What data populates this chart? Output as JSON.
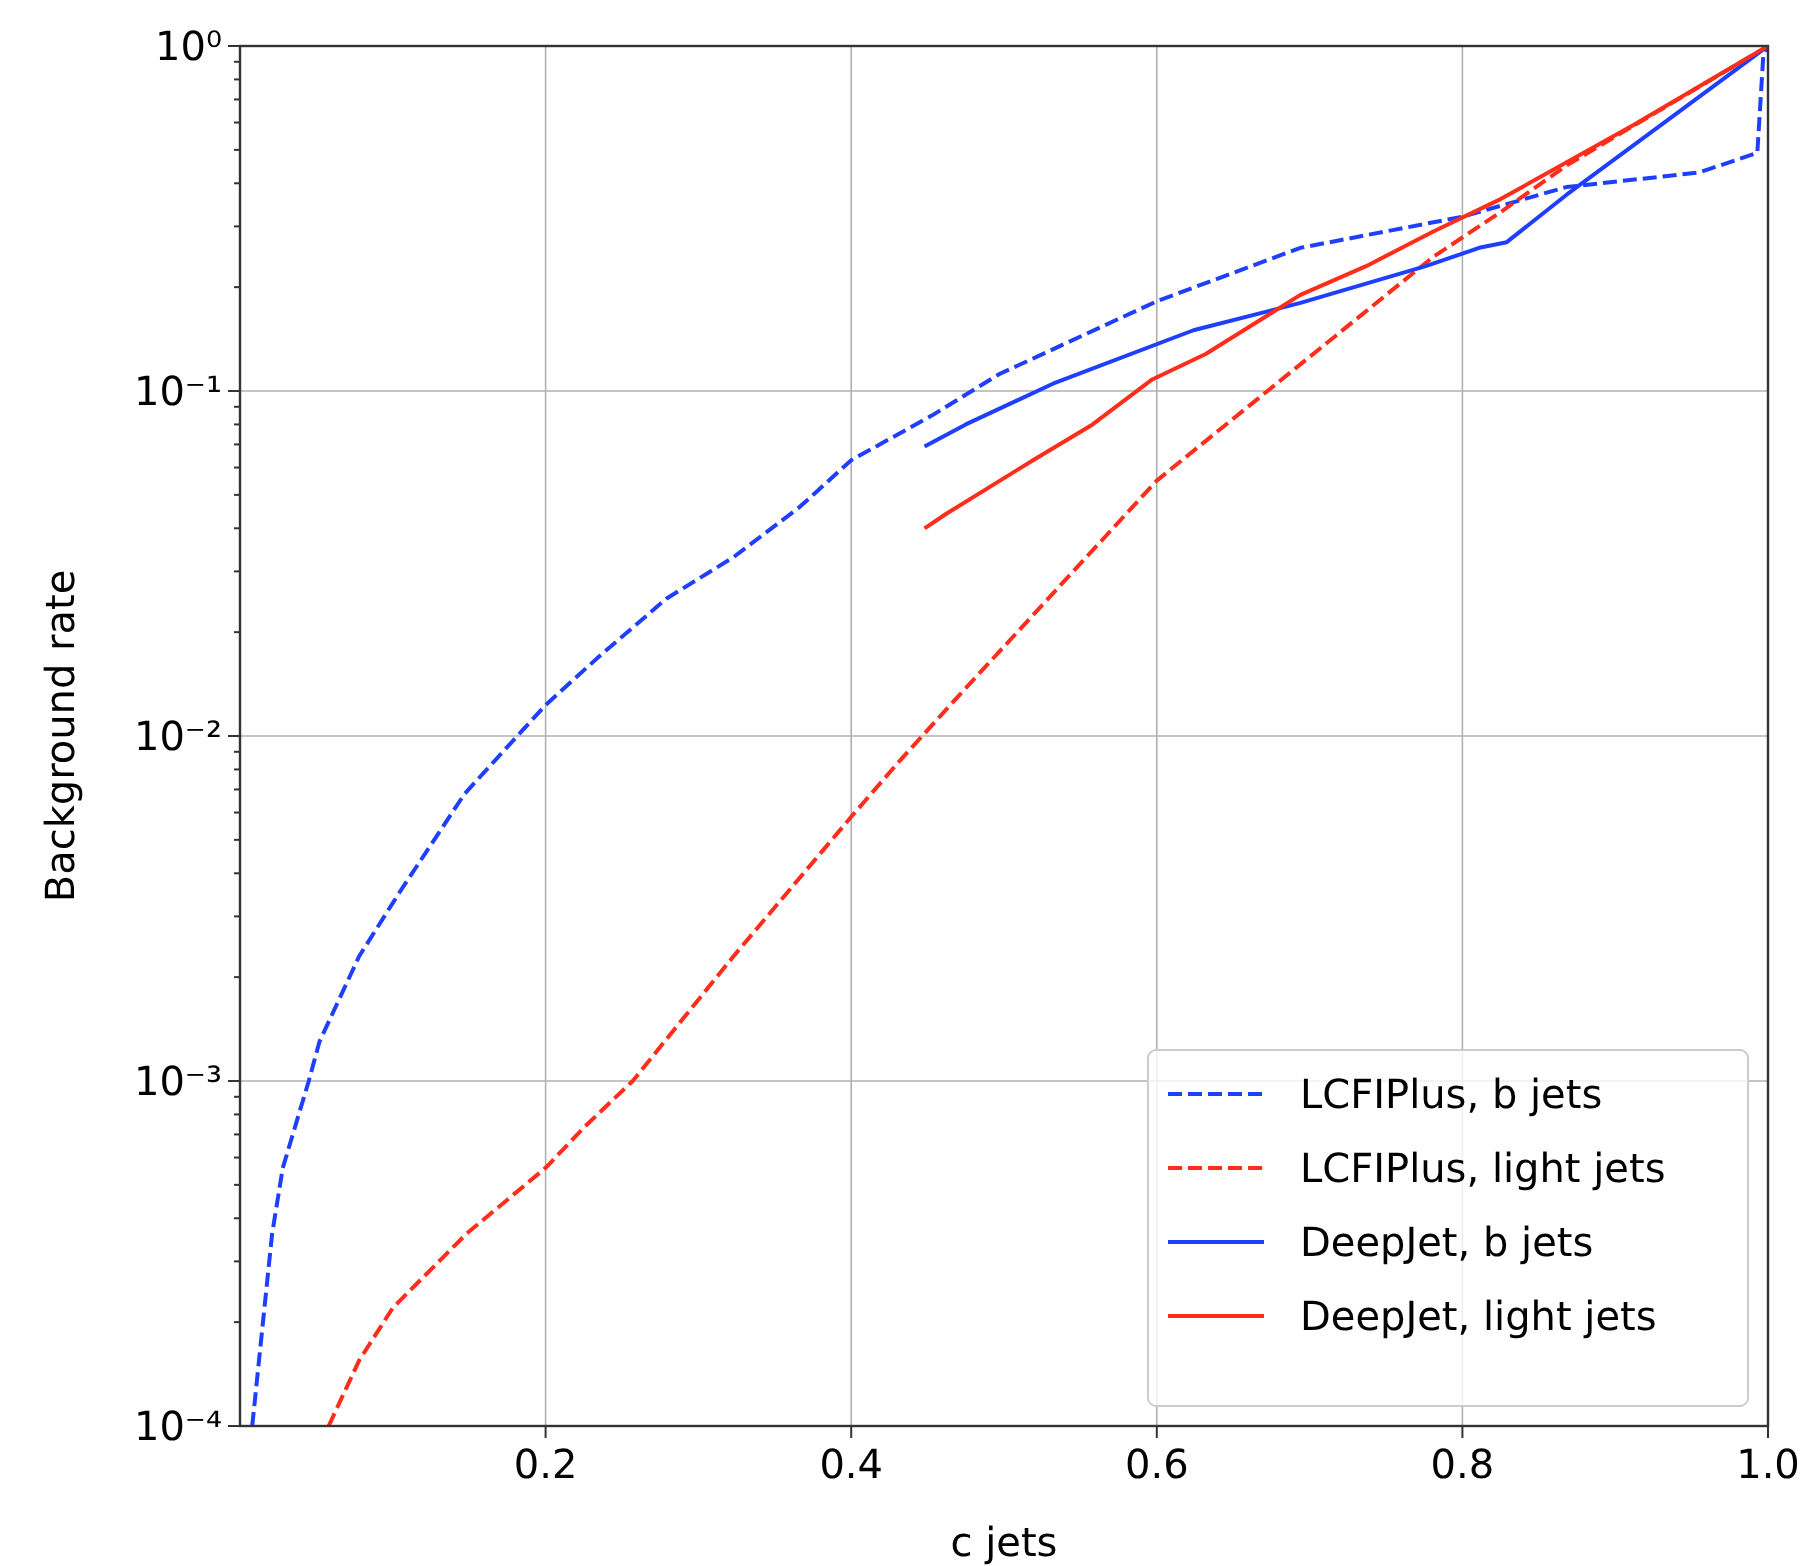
{
  "chart_data": {
    "type": "line",
    "xlabel": "c jets",
    "ylabel": "Background rate",
    "log": "y",
    "grid": true,
    "legend": "bottom right",
    "marker": "none",
    "xlim": [
      0,
      1
    ],
    "xticks": [
      0.2,
      0.4,
      0.6,
      0.8,
      {
        "value": 1.0,
        "label": "1.0"
      }
    ],
    "ylim": [
      0.0001,
      1
    ],
    "yticks": [
      {
        "value": 1,
        "label": "10⁰"
      },
      {
        "value": 0.1,
        "label": "10⁻¹"
      },
      {
        "value": 0.01,
        "label": "10⁻²"
      },
      {
        "value": 0.001,
        "label": "10⁻³"
      },
      {
        "value": 0.0001,
        "label": "10⁻⁴"
      },
      {
        "value": 0.0002,
        "label": null
      },
      {
        "value": 0.0003,
        "label": null
      },
      {
        "value": 0.0004,
        "label": null
      },
      {
        "value": 0.0005,
        "label": null
      },
      {
        "value": 0.0006,
        "label": null
      },
      {
        "value": 0.0007,
        "label": null
      },
      {
        "value": 0.0008,
        "label": null
      },
      {
        "value": 0.0009,
        "label": null
      },
      {
        "value": 0.002,
        "label": null
      },
      {
        "value": 0.003,
        "label": null
      },
      {
        "value": 0.004,
        "label": null
      },
      {
        "value": 0.005,
        "label": null
      },
      {
        "value": 0.006,
        "label": null
      },
      {
        "value": 0.007,
        "label": null
      },
      {
        "value": 0.008,
        "label": null
      },
      {
        "value": 0.009,
        "label": null
      },
      {
        "value": 0.02,
        "label": null
      },
      {
        "value": 0.03,
        "label": null
      },
      {
        "value": 0.04,
        "label": null
      },
      {
        "value": 0.05,
        "label": null
      },
      {
        "value": 0.06,
        "label": null
      },
      {
        "value": 0.07,
        "label": null
      },
      {
        "value": 0.08,
        "label": null
      },
      {
        "value": 0.09,
        "label": null
      },
      {
        "value": 0.2,
        "label": null
      },
      {
        "value": 0.3,
        "label": null
      },
      {
        "value": 0.4,
        "label": null
      },
      {
        "value": 0.5,
        "label": null
      },
      {
        "value": 0.6,
        "label": null
      },
      {
        "value": 0.7,
        "label": null
      },
      {
        "value": 0.8,
        "label": null
      },
      {
        "value": 0.9,
        "label": null
      }
    ],
    "series": [
      {
        "name": "LCFIPlus, b jets",
        "color": "#1f3fff",
        "line_style": "dashed",
        "x": [
          0.008,
          0.021,
          0.028,
          0.045,
          0.052,
          0.078,
          0.104,
          0.147,
          0.2,
          0.235,
          0.279,
          0.323,
          0.366,
          0.4,
          0.453,
          0.497,
          0.6,
          0.694,
          0.8,
          0.868,
          0.955,
          0.993,
          0.997,
          1.0
        ],
        "values": [
          0.0001,
          0.00036,
          0.00056,
          0.001,
          0.0013,
          0.0023,
          0.0035,
          0.0068,
          0.0123,
          0.017,
          0.025,
          0.033,
          0.046,
          0.063,
          0.085,
          0.112,
          0.182,
          0.26,
          0.32,
          0.39,
          0.43,
          0.49,
          0.95,
          1.0
        ]
      },
      {
        "name": "LCFIPlus, light jets",
        "color": "#ff2d1a",
        "line_style": "dashed",
        "x": [
          0.058,
          0.078,
          0.1,
          0.148,
          0.2,
          0.226,
          0.257,
          0.323,
          0.401,
          0.432,
          0.467,
          0.6,
          0.676,
          0.781,
          0.825,
          0.868,
          1.0
        ],
        "values": [
          0.0001,
          0.000155,
          0.00022,
          0.00036,
          0.00056,
          0.00074,
          0.001,
          0.0023,
          0.0059,
          0.0085,
          0.0126,
          0.055,
          0.103,
          0.245,
          0.33,
          0.45,
          1.0
        ]
      },
      {
        "name": "DeepJet, b jets",
        "color": "#1f3fff",
        "line_style": "solid",
        "x": [
          0.448,
          0.475,
          0.532,
          0.624,
          0.694,
          0.776,
          0.811,
          0.829,
          0.868,
          1.0
        ],
        "values": [
          0.069,
          0.08,
          0.105,
          0.15,
          0.18,
          0.23,
          0.26,
          0.27,
          0.37,
          1.0
        ]
      },
      {
        "name": "DeepJet, light jets",
        "color": "#ff2d1a",
        "line_style": "solid",
        "x": [
          0.448,
          0.462,
          0.519,
          0.558,
          0.597,
          0.632,
          0.694,
          0.737,
          0.781,
          0.825,
          0.912,
          1.0
        ],
        "values": [
          0.04,
          0.044,
          0.063,
          0.08,
          0.108,
          0.128,
          0.19,
          0.23,
          0.29,
          0.36,
          0.59,
          1.0
        ]
      }
    ]
  }
}
